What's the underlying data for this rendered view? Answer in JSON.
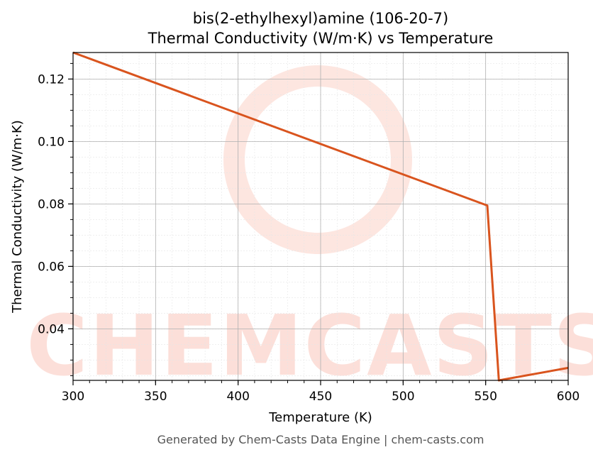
{
  "chart_data": {
    "type": "line",
    "title_line1": "bis(2-ethylhexyl)amine (106-20-7)",
    "title_line2": "Thermal Conductivity (W/m·K) vs Temperature",
    "xlabel": "Temperature (K)",
    "ylabel": "Thermal Conductivity (W/m·K)",
    "xlim": [
      300,
      600
    ],
    "ylim": [
      0.0235,
      0.1285
    ],
    "x_ticks": [
      300,
      350,
      400,
      450,
      500,
      550,
      600
    ],
    "x_tick_labels": [
      "300",
      "350",
      "400",
      "450",
      "500",
      "550",
      "600"
    ],
    "y_ticks": [
      0.04,
      0.06,
      0.08,
      0.1,
      0.12
    ],
    "y_tick_labels": [
      "0.04",
      "0.06",
      "0.08",
      "0.10",
      "0.12"
    ],
    "grid": true,
    "series": [
      {
        "color": "#d9541e",
        "x": [
          300,
          551,
          558,
          600
        ],
        "y": [
          0.1285,
          0.0795,
          0.0235,
          0.0275
        ]
      }
    ]
  },
  "watermark": {
    "text": "CHEMCASTS",
    "color": "#fbd8d1"
  },
  "footer": "Generated by Chem-Casts Data Engine | chem-casts.com"
}
